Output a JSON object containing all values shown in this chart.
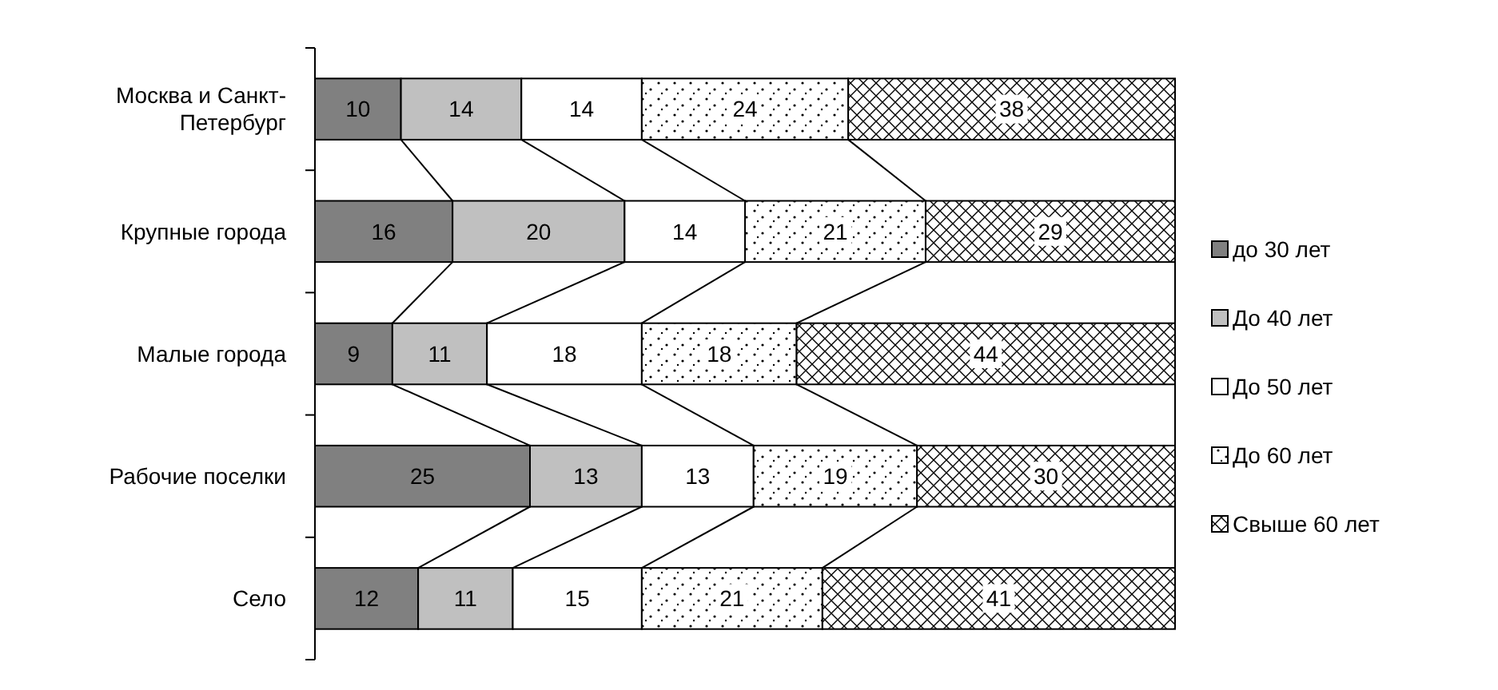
{
  "chart_data": {
    "type": "bar",
    "orientation": "horizontal",
    "stacked": true,
    "data_labels": true,
    "legend": "right",
    "categories": [
      "Москва и Санкт-Петербург",
      "Крупные города",
      "Малые города",
      "Рабочие поселки",
      "Село"
    ],
    "series": [
      {
        "name": "до 30 лет",
        "color": "#808080",
        "values": [
          10,
          16,
          9,
          25,
          12
        ]
      },
      {
        "name": "До 40 лет",
        "color": "#c0c0c0",
        "values": [
          14,
          20,
          11,
          13,
          11
        ]
      },
      {
        "name": "До 50 лет",
        "color": "#ffffff",
        "values": [
          14,
          14,
          18,
          13,
          15
        ]
      },
      {
        "name": "До 60 лет",
        "color": "#ffffff",
        "values": [
          24,
          21,
          18,
          19,
          21
        ]
      },
      {
        "name": "Свыше 60 лет",
        "color": "#ffffff",
        "values": [
          38,
          29,
          44,
          30,
          41
        ]
      }
    ]
  }
}
